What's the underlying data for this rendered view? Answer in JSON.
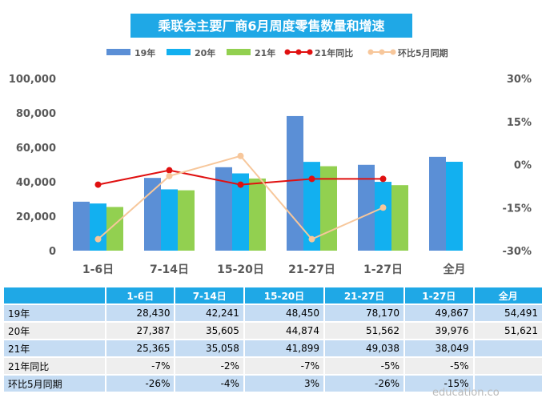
{
  "chart_data": {
    "type": "bar",
    "title": "乘联会主要厂商6月周度零售数量和增速",
    "categories": [
      "1-6日",
      "7-14日",
      "15-20日",
      "21-27日",
      "1-27日",
      "全月"
    ],
    "series": [
      {
        "name": "19年",
        "kind": "bar",
        "color": "#5b8fd6",
        "values": [
          28430,
          42241,
          48450,
          78170,
          49867,
          54491
        ]
      },
      {
        "name": "20年",
        "kind": "bar",
        "color": "#12b0f0",
        "values": [
          27387,
          35605,
          44874,
          51562,
          39976,
          51621
        ]
      },
      {
        "name": "21年",
        "kind": "bar",
        "color": "#92d050",
        "values": [
          25365,
          35058,
          41899,
          49038,
          38049,
          null
        ]
      },
      {
        "name": "21年同比",
        "kind": "line",
        "axis": "right",
        "color": "#e01010",
        "values": [
          -7,
          -2,
          -7,
          -5,
          -5,
          null
        ]
      },
      {
        "name": "环比5月同期",
        "kind": "line",
        "axis": "right",
        "color": "#f7c79b",
        "values": [
          -26,
          -4,
          3,
          -26,
          -15,
          null
        ]
      }
    ],
    "ylim": [
      0,
      100000
    ],
    "yticks": [
      "0",
      "20,000",
      "40,000",
      "60,000",
      "80,000",
      "100,000"
    ],
    "y2lim": [
      -30,
      30
    ],
    "y2ticks": [
      "-30%",
      "-15%",
      "0%",
      "15%",
      "30%"
    ],
    "legend_position": "top",
    "grid": false
  },
  "table": {
    "headers": [
      "1-6日",
      "7-14日",
      "15-20日",
      "21-27日",
      "1-27日",
      "全月"
    ],
    "rows": [
      {
        "label": "19年",
        "cells": [
          "28,430",
          "42,241",
          "48,450",
          "78,170",
          "49,867",
          "54,491"
        ]
      },
      {
        "label": "20年",
        "cells": [
          "27,387",
          "35,605",
          "44,874",
          "51,562",
          "39,976",
          "51,621"
        ]
      },
      {
        "label": "21年",
        "cells": [
          "25,365",
          "35,058",
          "41,899",
          "49,038",
          "38,049",
          ""
        ]
      },
      {
        "label": "21年同比",
        "cells": [
          "-7%",
          "-2%",
          "-7%",
          "-5%",
          "-5%",
          ""
        ]
      },
      {
        "label": "环比5月同期",
        "cells": [
          "-26%",
          "-4%",
          "3%",
          "-26%",
          "-15%",
          ""
        ]
      }
    ]
  },
  "watermark": "education.co"
}
